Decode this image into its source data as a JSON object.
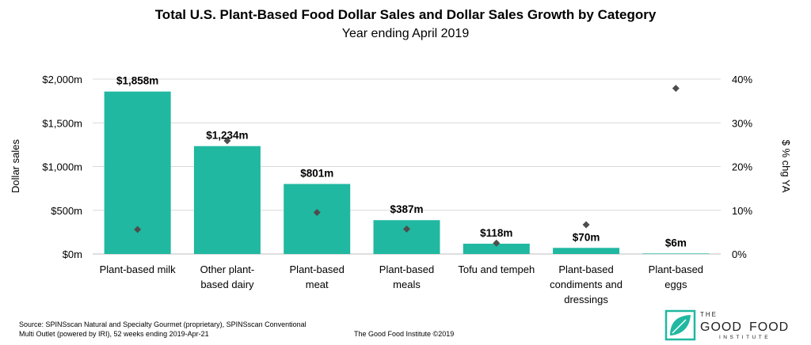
{
  "chart_data": {
    "type": "bar",
    "title": "Total U.S. Plant-Based Food Dollar Sales and Dollar Sales Growth by Category",
    "subtitle": "Year ending April 2019",
    "categories": [
      [
        "Plant-based milk"
      ],
      [
        "Other plant-",
        "based dairy"
      ],
      [
        "Plant-based",
        "meat"
      ],
      [
        "Plant-based",
        "meals"
      ],
      [
        "Tofu and tempeh"
      ],
      [
        "Plant-based",
        "condiments and",
        "dressings"
      ],
      [
        "Plant-based",
        "eggs"
      ]
    ],
    "series": [
      {
        "name": "Dollar sales",
        "axis": "left",
        "mark": "bar",
        "values": [
          1858,
          1234,
          801,
          387,
          118,
          70,
          6
        ],
        "labels": [
          "$1,858m",
          "$1,234m",
          "$801m",
          "$387m",
          "$118m",
          "$70m",
          "$6m"
        ],
        "color": "#20B8A0"
      },
      {
        "name": "$ % chg YA",
        "axis": "right",
        "mark": "diamond",
        "values": [
          5.6,
          25.9,
          9.5,
          5.7,
          2.5,
          6.7,
          37.9
        ],
        "color": "#4D4D4D"
      }
    ],
    "ylabel_left": "Dollar sales",
    "ylabel_right": "$ % chg YA",
    "ylim_left": [
      0,
      2000
    ],
    "yticks_left": [
      "$0m",
      "$500m",
      "$1,000m",
      "$1,500m",
      "$2,000m"
    ],
    "ylim_right": [
      0,
      40
    ],
    "yticks_right": [
      "0%",
      "10%",
      "20%",
      "30%",
      "40%"
    ],
    "grid": true,
    "gridline_color": "#D9D9D9"
  },
  "footer": {
    "source_line1": "Source: SPINSscan Natural and Specialty Gourmet (proprietary), SPINSscan Conventional",
    "source_line2": "Multi Outlet (powered by IRI), 52 weeks ending 2019-Apr-21",
    "credit": "The Good Food Institute ©2019"
  },
  "logo": {
    "the": "THE",
    "good": "GOOD",
    "food": "FOOD",
    "institute": "INSTITUTE",
    "color": "#20B8A0"
  }
}
